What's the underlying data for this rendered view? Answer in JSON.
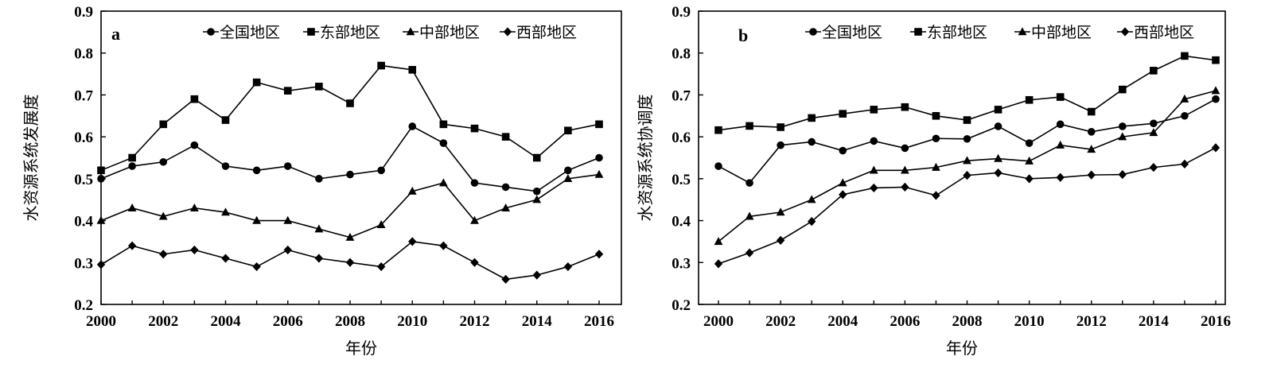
{
  "chart_data": [
    {
      "type": "line",
      "panel_label": "a",
      "xlabel": "年份",
      "ylabel": "水资源系统发展度",
      "xlim": [
        2000,
        2016
      ],
      "ylim": [
        0.2,
        0.9
      ],
      "x_ticks": [
        "2000",
        "2002",
        "2004",
        "2006",
        "2008",
        "2010",
        "2012",
        "2014",
        "2016"
      ],
      "y_ticks": [
        "0.2",
        "0.3",
        "0.4",
        "0.5",
        "0.6",
        "0.7",
        "0.8",
        "0.9"
      ],
      "grid": false,
      "legend": "top",
      "x": [
        2000,
        2001,
        2002,
        2003,
        2004,
        2005,
        2006,
        2007,
        2008,
        2009,
        2010,
        2011,
        2012,
        2013,
        2014,
        2015,
        2016
      ],
      "series": [
        {
          "name": "全国地区",
          "marker": "circle",
          "values": [
            0.5,
            0.53,
            0.54,
            0.58,
            0.53,
            0.52,
            0.53,
            0.5,
            0.51,
            0.52,
            0.625,
            0.585,
            0.49,
            0.48,
            0.47,
            0.52,
            0.55
          ]
        },
        {
          "name": "东部地区",
          "marker": "square",
          "values": [
            0.52,
            0.55,
            0.63,
            0.69,
            0.64,
            0.73,
            0.71,
            0.72,
            0.68,
            0.77,
            0.76,
            0.63,
            0.62,
            0.6,
            0.55,
            0.615,
            0.63
          ]
        },
        {
          "name": "中部地区",
          "marker": "triangle",
          "values": [
            0.4,
            0.43,
            0.41,
            0.43,
            0.42,
            0.4,
            0.4,
            0.38,
            0.36,
            0.39,
            0.47,
            0.49,
            0.4,
            0.43,
            0.45,
            0.5,
            0.51
          ]
        },
        {
          "name": "西部地区",
          "marker": "diamond",
          "values": [
            0.295,
            0.34,
            0.32,
            0.33,
            0.31,
            0.29,
            0.33,
            0.31,
            0.3,
            0.29,
            0.35,
            0.34,
            0.3,
            0.26,
            0.27,
            0.29,
            0.32
          ]
        }
      ]
    },
    {
      "type": "line",
      "panel_label": "b",
      "xlabel": "年份",
      "ylabel": "水资源系统协调度",
      "xlim": [
        2000,
        2016
      ],
      "ylim": [
        0.2,
        0.9
      ],
      "x_ticks": [
        "2000",
        "2002",
        "2004",
        "2006",
        "2008",
        "2010",
        "2012",
        "2014",
        "2016"
      ],
      "y_ticks": [
        "0.2",
        "0.3",
        "0.4",
        "0.5",
        "0.6",
        "0.7",
        "0.8",
        "0.9"
      ],
      "grid": false,
      "legend": "top",
      "x": [
        2000,
        2001,
        2002,
        2003,
        2004,
        2005,
        2006,
        2007,
        2008,
        2009,
        2010,
        2011,
        2012,
        2013,
        2014,
        2015,
        2016
      ],
      "series": [
        {
          "name": "全国地区",
          "marker": "circle",
          "values": [
            0.53,
            0.49,
            0.58,
            0.588,
            0.567,
            0.59,
            0.573,
            0.596,
            0.595,
            0.625,
            0.585,
            0.63,
            0.612,
            0.625,
            0.632,
            0.65,
            0.69
          ]
        },
        {
          "name": "东部地区",
          "marker": "square",
          "values": [
            0.616,
            0.626,
            0.623,
            0.645,
            0.655,
            0.665,
            0.671,
            0.65,
            0.64,
            0.665,
            0.688,
            0.695,
            0.66,
            0.713,
            0.758,
            0.793,
            0.783
          ]
        },
        {
          "name": "中部地区",
          "marker": "triangle",
          "values": [
            0.35,
            0.41,
            0.42,
            0.45,
            0.49,
            0.52,
            0.52,
            0.527,
            0.543,
            0.548,
            0.542,
            0.58,
            0.57,
            0.6,
            0.61,
            0.69,
            0.71
          ]
        },
        {
          "name": "西部地区",
          "marker": "diamond",
          "values": [
            0.297,
            0.323,
            0.353,
            0.398,
            0.462,
            0.478,
            0.48,
            0.46,
            0.508,
            0.514,
            0.5,
            0.503,
            0.509,
            0.51,
            0.527,
            0.535,
            0.574
          ]
        }
      ]
    }
  ]
}
